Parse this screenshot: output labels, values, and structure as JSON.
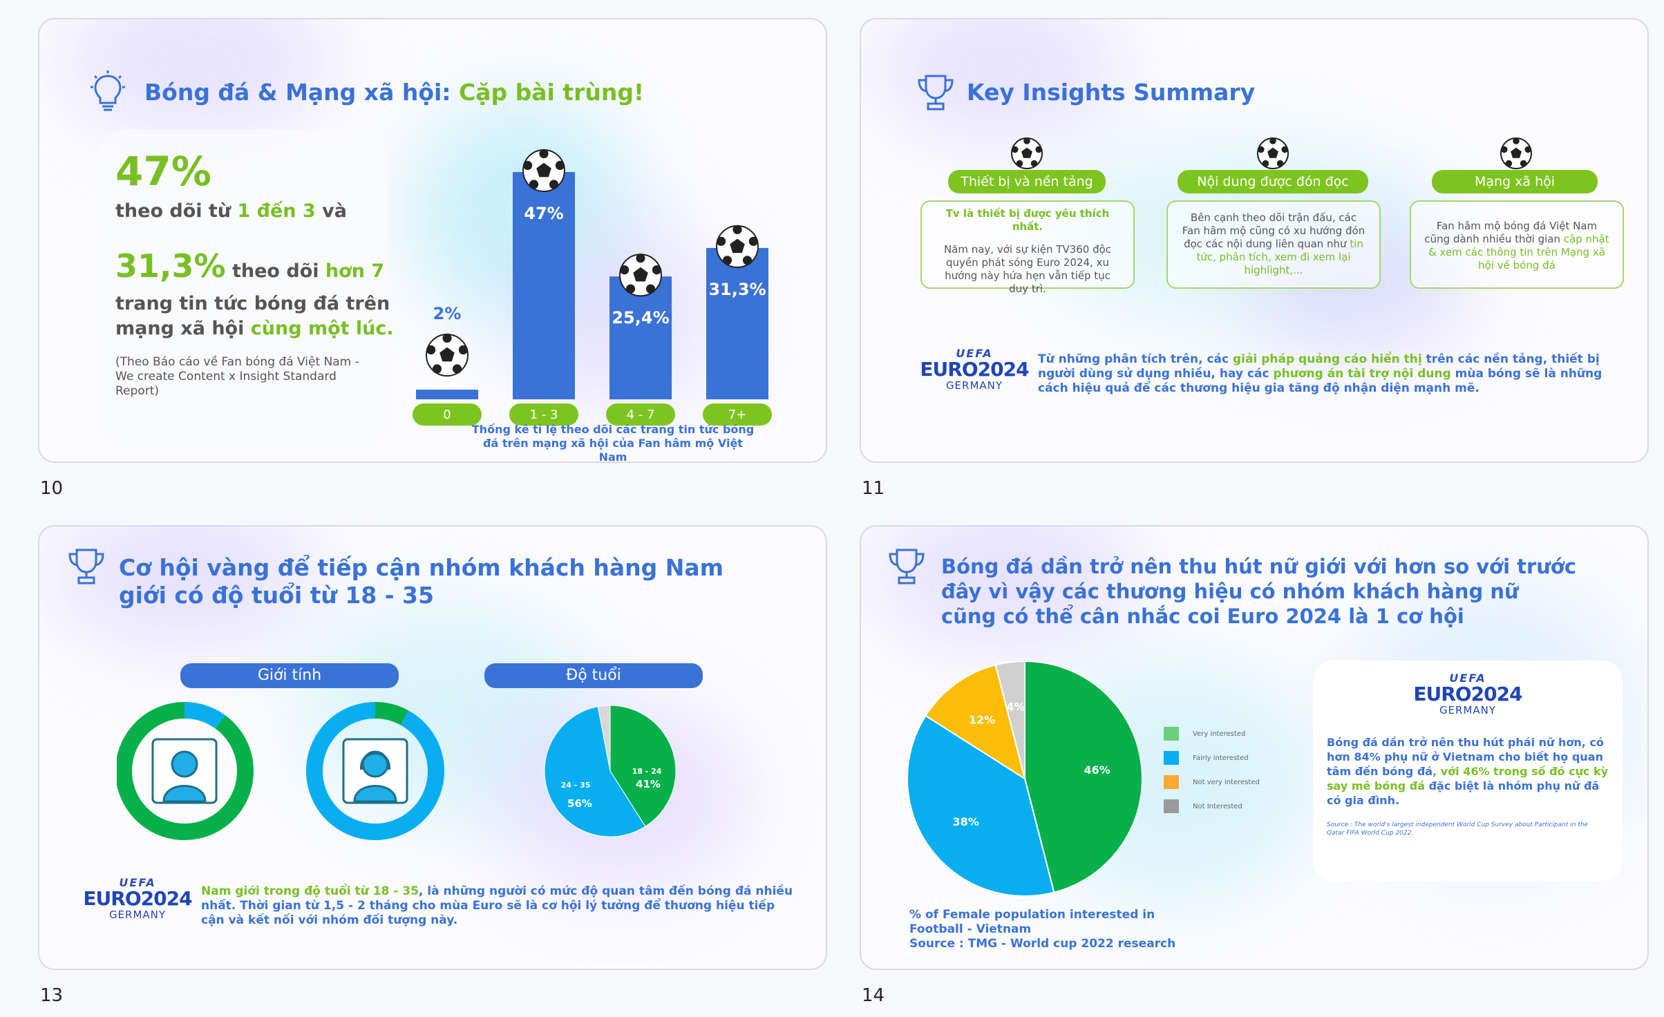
{
  "slides": {
    "s10": {
      "number": "10",
      "title_part1": "Bóng đá & Mạng xã hội: ",
      "title_part2": "Cặp bài trùng!",
      "stat1": "47%",
      "line1a": "theo dõi từ ",
      "line1b": "1 đến 3",
      "line1c": " và",
      "stat2": "31,3%",
      "line2a": " theo dõi ",
      "line2b": "hơn 7",
      "line3": "trang tin tức bóng đá trên",
      "line4a": "mạng xã hội ",
      "line4b": "cùng một lúc.",
      "source": "(Theo Báo cáo về Fan bóng đá Việt Nam - We create Content x Insight Standard Report)",
      "caption": "Thống kê tỉ lệ theo dõi các trang tin tức bóng đá trên mạng xã hội của Fan hâm mộ Việt Nam"
    },
    "s11": {
      "number": "11",
      "title": "Key Insights Summary",
      "pills": [
        "Thiết bị và nền tảng",
        "Nội dung được đón đọc",
        "Mạng xã hội"
      ],
      "box1_head": "Tv là thiết bị được yêu thích nhất.",
      "box1_body": "Năm nay, với sự kiện TV360 độc quyền phát sóng Euro 2024, xu hướng này hứa hẹn vẫn tiếp tục duy trì.",
      "box2_a": "Bên cạnh theo dõi trận đấu, các Fan hâm mộ cũng có xu hướng đón đọc các nội dung liên quan như ",
      "box2_b": "tin tức, phân tích, xem đi xem lại highlight,...",
      "box3_a": "Fan hâm mộ bóng đá Việt Nam cũng dành nhiều thời gian ",
      "box3_b": "cập nhật & xem các thông tin trên Mạng xã hội về bóng đá",
      "footer_a": "Từ những phân tích trên, các ",
      "footer_b": "giải pháp quảng cáo hiển thị",
      "footer_c": " trên các nền tảng, thiết bị người dùng sử dụng nhiều, hay các ",
      "footer_d": "phương án tài trợ nội dung",
      "footer_e": " mùa bóng sẽ là những cách hiệu quả để các thương hiệu gia tăng độ nhận diện mạnh mẽ."
    },
    "s13": {
      "number": "13",
      "title_line1": "Cơ hội vàng để tiếp cận nhóm khách hàng Nam",
      "title_line2": "giới có độ tuổi từ 18 - 35",
      "pill_gender": "Giới tính",
      "pill_age": "Độ tuổi",
      "footer_a": "Nam giới trong độ tuổi từ 18 - 35",
      "footer_b": ", là những người có mức độ quan tâm đến bóng đá nhiều nhất. Thời gian từ 1,5 - 2 tháng cho mùa Euro sẽ là cơ hội lý tưởng để thương hiệu tiếp cận và kết nối với nhóm đối tượng này."
    },
    "s14": {
      "number": "14",
      "title_line1": "Bóng đá dần trở nên thu hút nữ giới với hơn so với trước",
      "title_line2": "đây vì vậy các thương hiệu có nhóm khách hàng nữ",
      "title_line3": "cũng có thể cân nhắc coi Euro 2024 là 1 cơ hội",
      "legend": [
        "Very interested",
        "Fairly interested",
        "Not very interested",
        "Not Interested"
      ],
      "box_a": "Bóng đá dần trở nên thu hút phái nữ hơn, có hơn 84% phụ nữ ở Vietnam cho biết họ quan tâm đến bóng đá",
      "box_b": ", với 46% trong số đó cực kỳ say mê bóng đá",
      "box_c": " đặc biệt là nhóm phụ nữ đã có gia đình.",
      "box_source": "Source : The world's largest independent World Cup Survey about Participant in the Qatar FIFA World Cup 2022.",
      "caption1": "% of Female population interested in",
      "caption2": "Football - Vietnam",
      "caption3": "Source : TMG - World cup 2022 research"
    },
    "euro": {
      "uefa": "UEFA",
      "name": "EURO2024",
      "country": "GERMANY"
    }
  },
  "colors": {
    "blue": "#3a72d6",
    "green": "#78bf24",
    "pie_green": "#07b04a",
    "pie_blue": "#08aef0",
    "pie_yellow": "#fbbd08",
    "pie_gray": "#d0d0d0"
  },
  "chart_data": [
    {
      "type": "bar",
      "categories": [
        "0",
        "1 - 3",
        "4 - 7",
        "7+"
      ],
      "values": [
        2,
        47,
        25.4,
        31.3
      ],
      "labels": [
        "2%",
        "47%",
        "25,4%",
        "31,3%"
      ]
    },
    {
      "type": "pie",
      "title": "Giới tính",
      "donuts": [
        {
          "icon": "male-user-icon",
          "values": [
            90,
            10
          ]
        },
        {
          "icon": "female-user-icon",
          "values": [
            92,
            8
          ]
        }
      ]
    },
    {
      "type": "pie",
      "title": "Độ tuổi",
      "categories": [
        "18 - 24",
        "24 - 35",
        "other"
      ],
      "values": [
        41,
        56,
        3
      ],
      "labels": [
        "41%",
        "56%",
        ""
      ]
    },
    {
      "type": "pie",
      "categories": [
        "Very interested",
        "Fairly interested",
        "Not very interested",
        "Not Interested"
      ],
      "values": [
        46,
        38,
        12,
        4
      ],
      "labels": [
        "46%",
        "38%",
        "12%",
        "4%"
      ]
    }
  ]
}
